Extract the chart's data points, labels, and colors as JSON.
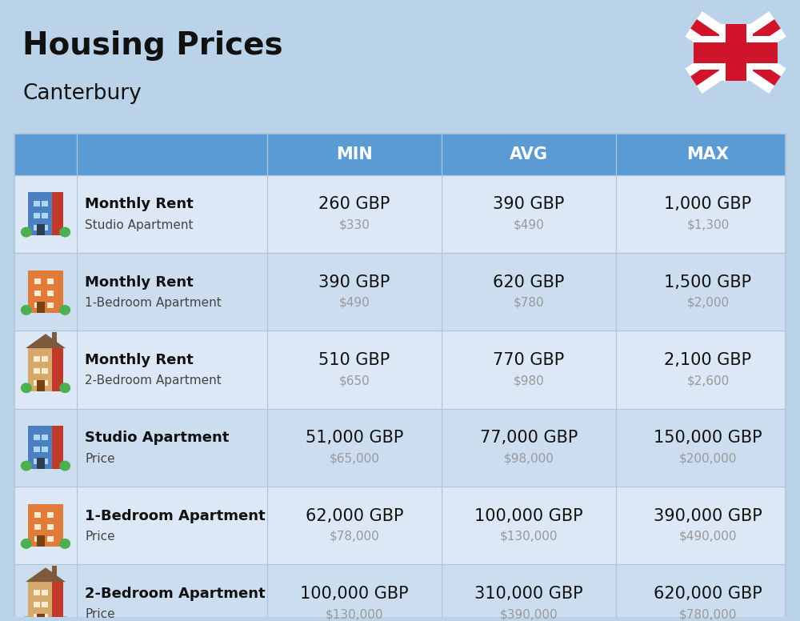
{
  "title": "Housing Prices",
  "subtitle": "Canterbury",
  "background_color": "#bad3e8",
  "header_color": "#5b9bd5",
  "header_text_color": "#ffffff",
  "row_bg_odd": "#dce8f5",
  "row_bg_even": "#cdddf0",
  "divider_color": "#aec6dc",
  "columns": [
    "MIN",
    "AVG",
    "MAX"
  ],
  "rows": [
    {
      "label_bold": "Monthly Rent",
      "label_light": "Studio Apartment",
      "icon_type": "studio_blue",
      "min_gbp": "260 GBP",
      "min_usd": "$330",
      "avg_gbp": "390 GBP",
      "avg_usd": "$490",
      "max_gbp": "1,000 GBP",
      "max_usd": "$1,300"
    },
    {
      "label_bold": "Monthly Rent",
      "label_light": "1-Bedroom Apartment",
      "icon_type": "one_bed_orange",
      "min_gbp": "390 GBP",
      "min_usd": "$490",
      "avg_gbp": "620 GBP",
      "avg_usd": "$780",
      "max_gbp": "1,500 GBP",
      "max_usd": "$2,000"
    },
    {
      "label_bold": "Monthly Rent",
      "label_light": "2-Bedroom Apartment",
      "icon_type": "two_bed_beige",
      "min_gbp": "510 GBP",
      "min_usd": "$650",
      "avg_gbp": "770 GBP",
      "avg_usd": "$980",
      "max_gbp": "2,100 GBP",
      "max_usd": "$2,600"
    },
    {
      "label_bold": "Studio Apartment",
      "label_light": "Price",
      "icon_type": "studio_blue",
      "min_gbp": "51,000 GBP",
      "min_usd": "$65,000",
      "avg_gbp": "77,000 GBP",
      "avg_usd": "$98,000",
      "max_gbp": "150,000 GBP",
      "max_usd": "$200,000"
    },
    {
      "label_bold": "1-Bedroom Apartment",
      "label_light": "Price",
      "icon_type": "one_bed_orange",
      "min_gbp": "62,000 GBP",
      "min_usd": "$78,000",
      "avg_gbp": "100,000 GBP",
      "avg_usd": "$130,000",
      "max_gbp": "390,000 GBP",
      "max_usd": "$490,000"
    },
    {
      "label_bold": "2-Bedroom Apartment",
      "label_light": "Price",
      "icon_type": "two_bed_beige",
      "min_gbp": "100,000 GBP",
      "min_usd": "$130,000",
      "avg_gbp": "310,000 GBP",
      "avg_usd": "$390,000",
      "max_gbp": "620,000 GBP",
      "max_usd": "$780,000"
    }
  ],
  "title_fontsize": 28,
  "subtitle_fontsize": 19,
  "header_fontsize": 15,
  "gbp_fontsize": 15,
  "usd_fontsize": 11
}
